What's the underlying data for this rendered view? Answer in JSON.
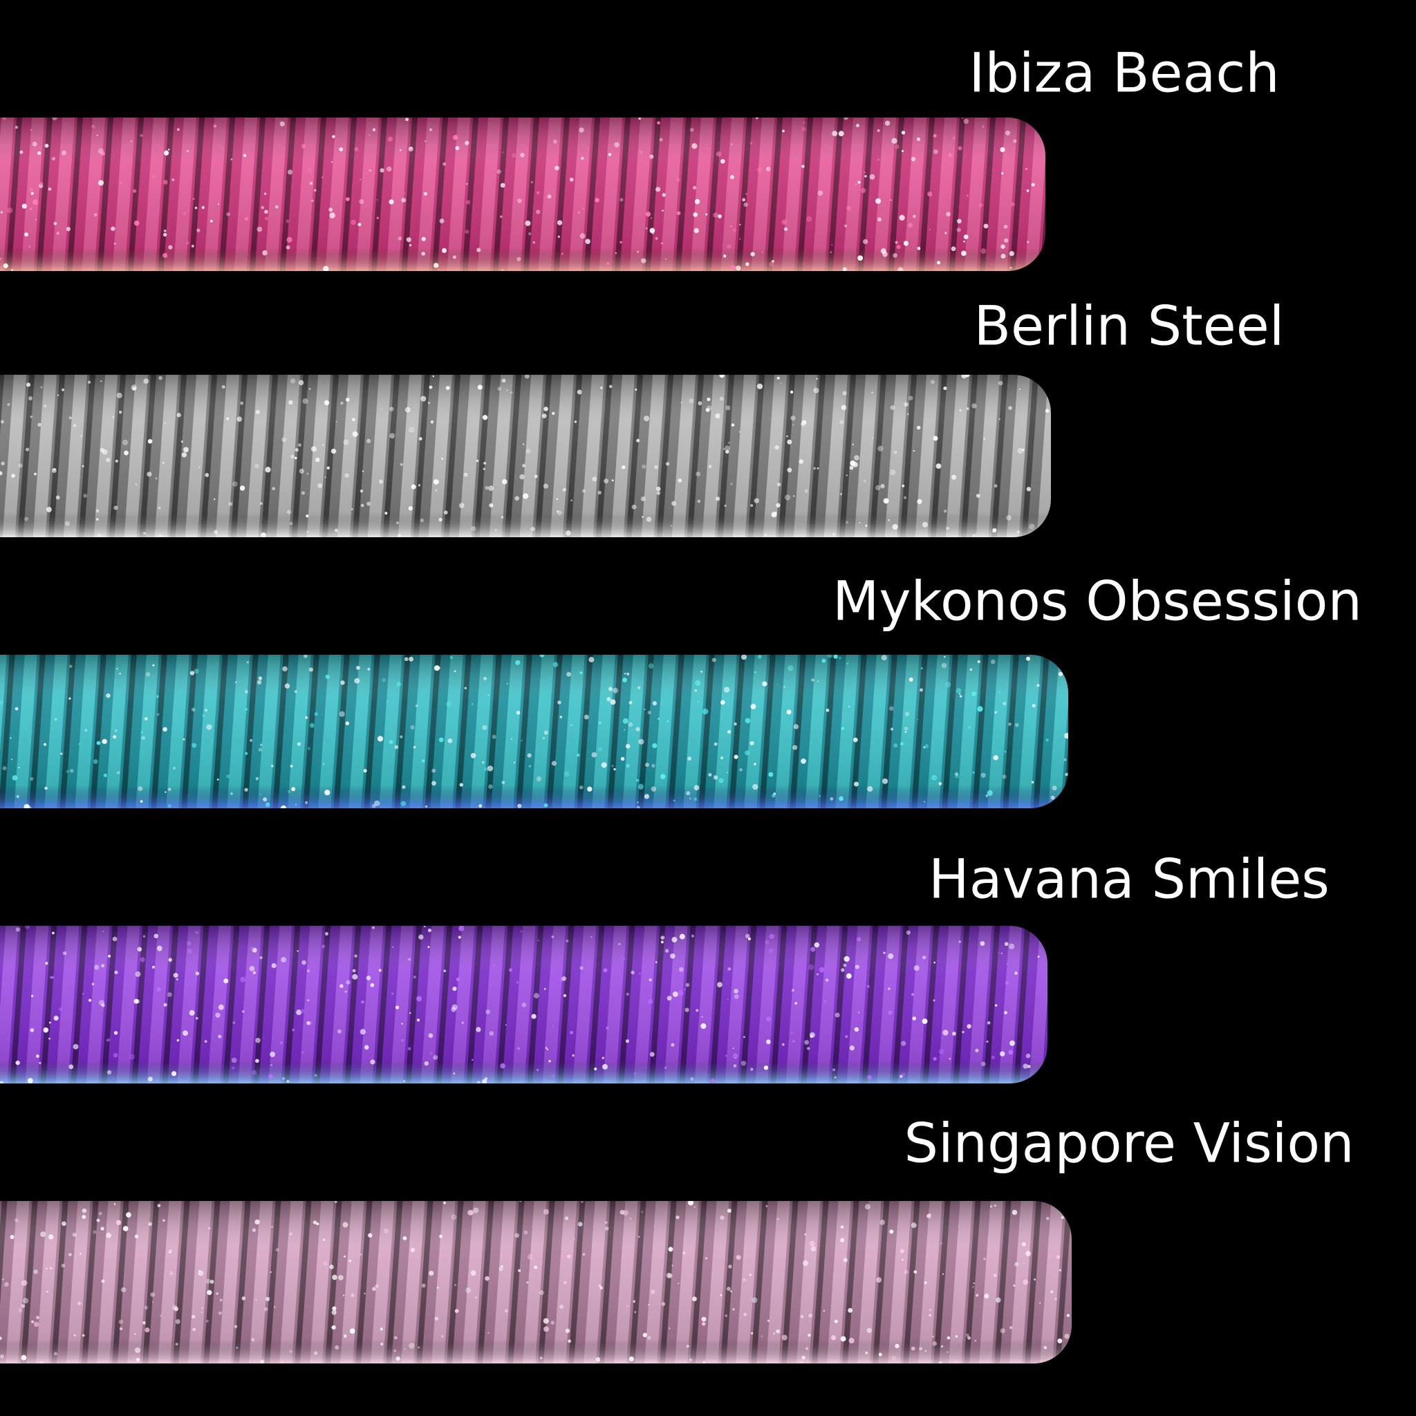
{
  "swatches": [
    {
      "label": "Ibiza Beach"
    },
    {
      "label": "Berlin Steel"
    },
    {
      "label": "Mykonos Obsession"
    },
    {
      "label": "Havana Smiles"
    },
    {
      "label": "Singapore Vision"
    }
  ]
}
